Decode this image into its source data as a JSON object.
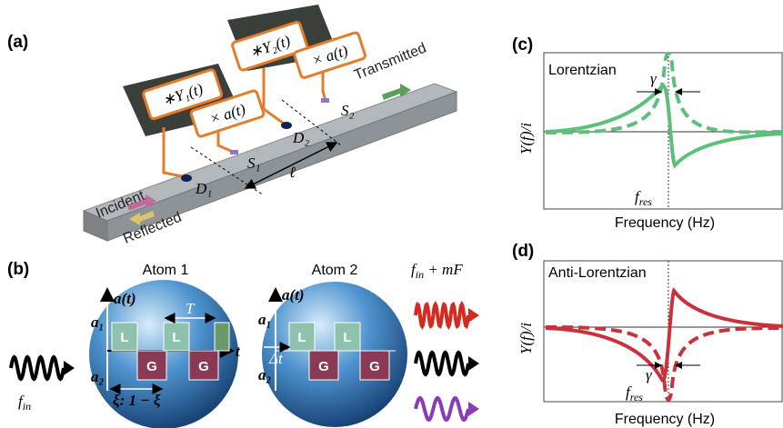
{
  "panels": {
    "a": {
      "label": "(a)",
      "modules": [
        {
          "correlator": "∗Y₁(t)",
          "modulator": "× a(t)"
        },
        {
          "correlator": "∗Y₂(t)",
          "modulator": "× a(t)"
        }
      ],
      "detectors": [
        "D₁",
        "D₂"
      ],
      "sources": [
        "S₁",
        "S₂"
      ],
      "spacing": "ℓ",
      "incident": "Incident",
      "reflected": "Reflected",
      "transmitted": "Transmitted"
    },
    "b": {
      "label": "(b)",
      "input": {
        "main": "f",
        "sub": "in"
      },
      "output": {
        "main": "f",
        "sub": "in",
        "suffix": " + mF"
      },
      "atoms": [
        {
          "title": "Atom 1",
          "signal": "a(t)",
          "high": "a₁",
          "low": "a₂",
          "axis": "t",
          "period": "T",
          "duty": "ξ: 1 − ξ",
          "blocks": [
            "L",
            "G",
            "L",
            "G"
          ]
        },
        {
          "title": "Atom 2",
          "signal": "a(t)",
          "high": "a₁",
          "low": "a₂",
          "delay": "Δt",
          "blocks": [
            "L",
            "G",
            "L",
            "G"
          ]
        }
      ]
    },
    "c": {
      "label": "(c)",
      "curve": "Lorentzian",
      "linewidth": "γ",
      "ylabel": "Y(f)/i",
      "resonance": {
        "main": "f",
        "sub": "res"
      },
      "xlabel": "Frequency (Hz)"
    },
    "d": {
      "label": "(d)",
      "curve": "Anti-Lorentzian",
      "linewidth": "γ",
      "ylabel": "Y(f)/i",
      "resonance": {
        "main": "f",
        "sub": "res"
      },
      "xlabel": "Frequency (Hz)"
    }
  }
}
